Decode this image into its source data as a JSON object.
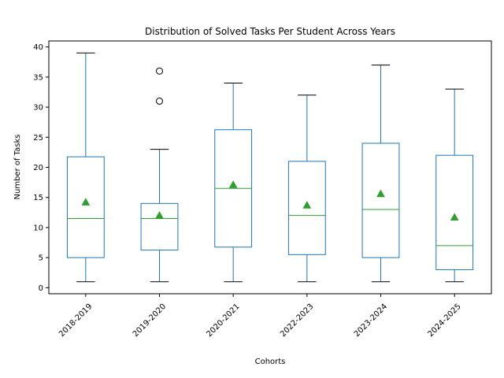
{
  "chart_data": {
    "type": "box",
    "title": "Distribution of Solved Tasks Per Student Across Years",
    "xlabel": "Cohorts",
    "ylabel": "Number of Tasks",
    "ylim": [
      -1,
      41
    ],
    "yticks": [
      0,
      5,
      10,
      15,
      20,
      25,
      30,
      35,
      40
    ],
    "grid": false,
    "categories": [
      "2018-2019",
      "2019-2020",
      "2020-2021",
      "2022-2023",
      "2023-2024",
      "2024-2025"
    ],
    "boxes": [
      {
        "category": "2018-2019",
        "whisker_low": 1,
        "q1": 5.0,
        "median": 11.5,
        "q3": 21.75,
        "whisker_high": 39,
        "mean": 14.2,
        "outliers": []
      },
      {
        "category": "2019-2020",
        "whisker_low": 1,
        "q1": 6.25,
        "median": 11.5,
        "q3": 14.0,
        "whisker_high": 23,
        "mean": 12.0,
        "outliers": [
          31,
          36
        ]
      },
      {
        "category": "2020-2021",
        "whisker_low": 1,
        "q1": 6.75,
        "median": 16.5,
        "q3": 26.25,
        "whisker_high": 34,
        "mean": 17.1,
        "outliers": []
      },
      {
        "category": "2022-2023",
        "whisker_low": 1,
        "q1": 5.5,
        "median": 12.0,
        "q3": 21.0,
        "whisker_high": 32,
        "mean": 13.7,
        "outliers": []
      },
      {
        "category": "2023-2024",
        "whisker_low": 1,
        "q1": 5.0,
        "median": 13.0,
        "q3": 24.0,
        "whisker_high": 37,
        "mean": 15.6,
        "outliers": []
      },
      {
        "category": "2024-2025",
        "whisker_low": 1,
        "q1": 3.0,
        "median": 7.0,
        "q3": 22.0,
        "whisker_high": 33,
        "mean": 11.7,
        "outliers": []
      }
    ],
    "colors": {
      "box": "#1f77b4",
      "median": "#2ca02c",
      "mean": "#2ca02c",
      "whisker_cap": "#000000",
      "outlier": "#000000"
    }
  }
}
